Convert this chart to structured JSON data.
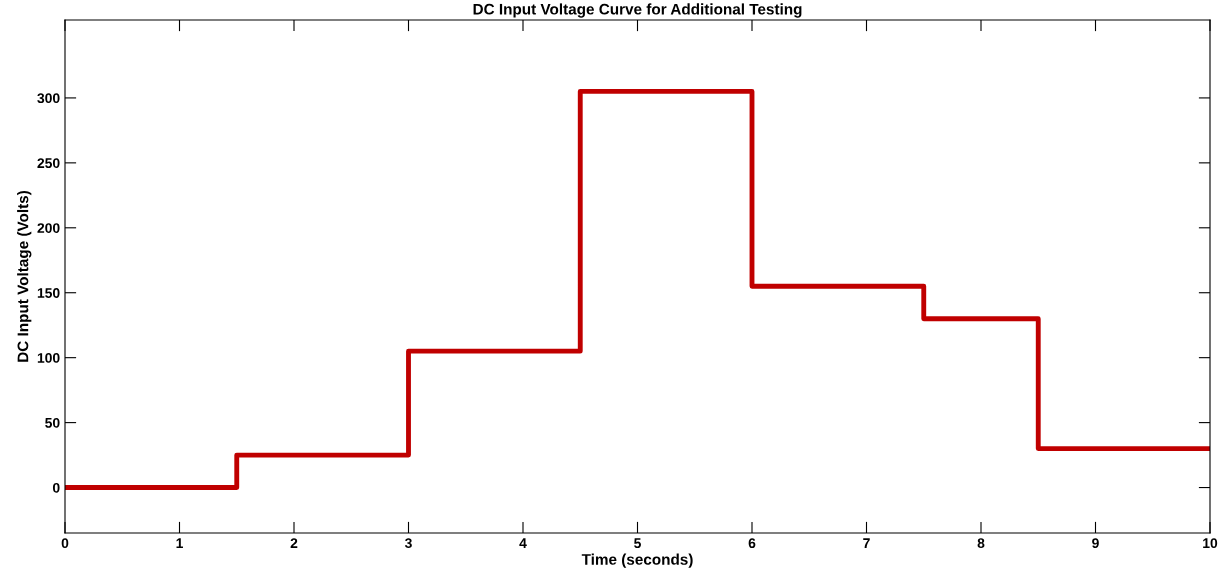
{
  "chart_data": {
    "type": "step",
    "title": "DC Input Voltage Curve for Additional Testing",
    "xlabel": "Time (seconds)",
    "ylabel": "DC Input Voltage (Volts)",
    "x": [
      0,
      1.5,
      3,
      4.5,
      6,
      7.5,
      8.5,
      10
    ],
    "series": [
      {
        "color": "#c00000",
        "values": [
          0,
          25,
          105,
          305,
          155,
          130,
          30,
          30
        ]
      }
    ],
    "xlim": [
      0,
      10
    ],
    "xticks": [
      0,
      1,
      2,
      3,
      4,
      5,
      6,
      7,
      8,
      9,
      10
    ],
    "ylim": [
      -35,
      360
    ],
    "yticks": [
      0,
      50,
      100,
      150,
      200,
      250,
      300
    ],
    "grid": false,
    "legend": false,
    "marker": "none",
    "line_style": "solid"
  }
}
